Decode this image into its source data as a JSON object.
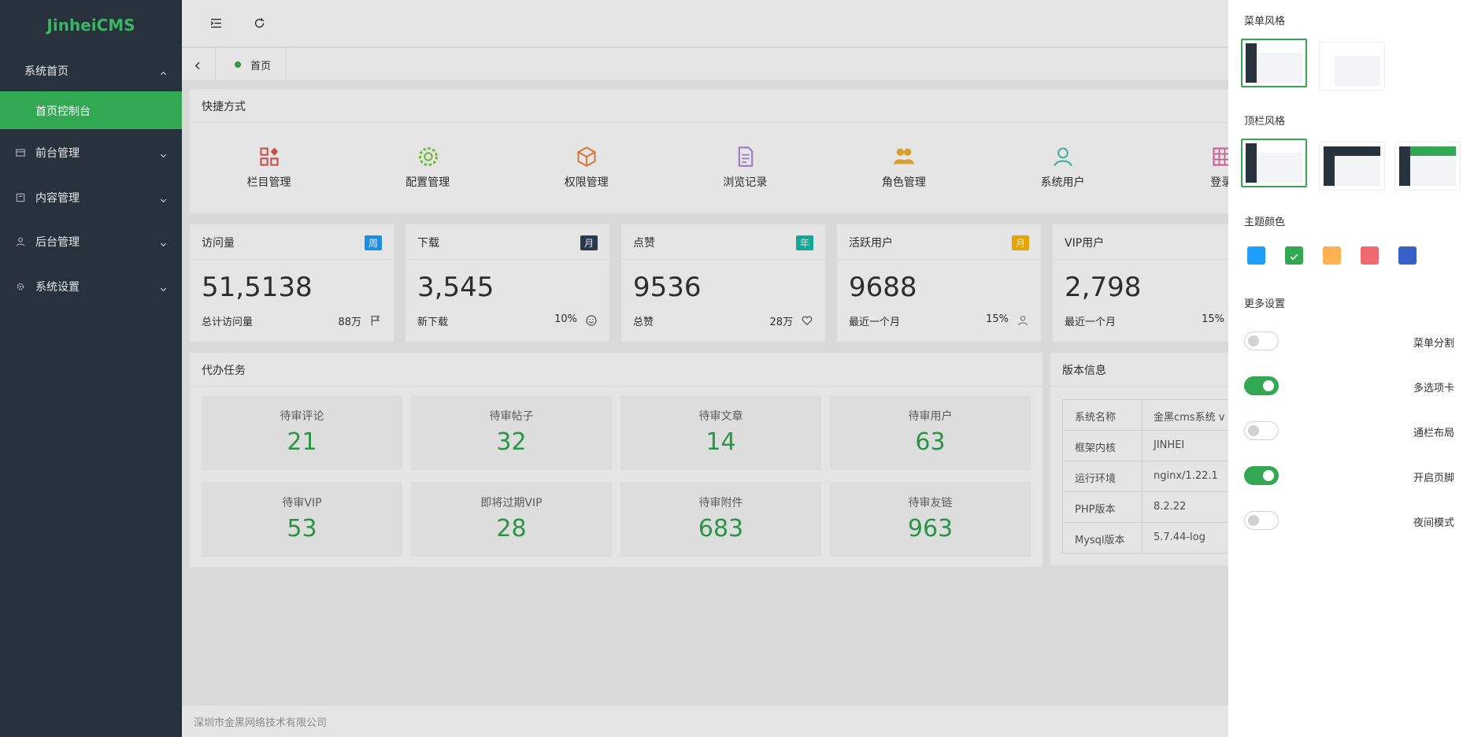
{
  "brand": "JinheiCMS",
  "menu": [
    {
      "label": "系统首页",
      "open": true,
      "children": [
        {
          "label": "首页控制台",
          "active": true
        }
      ]
    },
    {
      "label": "前台管理"
    },
    {
      "label": "内容管理"
    },
    {
      "label": "后台管理"
    },
    {
      "label": "系统设置"
    }
  ],
  "tabs": [
    {
      "label": "首页"
    }
  ],
  "shortcuts": {
    "title": "快捷方式",
    "items": [
      {
        "label": "栏目管理",
        "color": "#e05858"
      },
      {
        "label": "配置管理",
        "color": "#7ccd3f"
      },
      {
        "label": "权限管理",
        "color": "#f0884a"
      },
      {
        "label": "浏览记录",
        "color": "#a98bd6"
      },
      {
        "label": "角色管理",
        "color": "#f0b232"
      },
      {
        "label": "系统用户",
        "color": "#4fc0b0"
      },
      {
        "label": "登录",
        "color": "#e06aa0"
      }
    ]
  },
  "stats": [
    {
      "title": "访问量",
      "badge": "周",
      "badge_color": "#1e9fff",
      "value": "51,5138",
      "note": "总计访问量",
      "extra": "88万"
    },
    {
      "title": "下载",
      "badge": "月",
      "badge_color": "#2f4056",
      "value": "3,545",
      "note": "新下载",
      "extra": "10%"
    },
    {
      "title": "点赞",
      "badge": "年",
      "badge_color": "#16baaa",
      "value": "9536",
      "note": "总赞",
      "extra": "28万"
    },
    {
      "title": "活跃用户",
      "badge": "月",
      "badge_color": "#ffb800",
      "value": "9688",
      "note": "最近一个月",
      "extra": "15%"
    },
    {
      "title": "VIP用户",
      "value": "2,798",
      "note": "最近一个月",
      "extra": "15%"
    }
  ],
  "tasks": {
    "title": "代办任务",
    "items": [
      {
        "label": "待审评论",
        "value": 21
      },
      {
        "label": "待审帖子",
        "value": 32
      },
      {
        "label": "待审文章",
        "value": 14
      },
      {
        "label": "待审用户",
        "value": 63
      },
      {
        "label": "待审VIP",
        "value": 53
      },
      {
        "label": "即将过期VIP",
        "value": 28
      },
      {
        "label": "待审附件",
        "value": 683
      },
      {
        "label": "待审友链",
        "value": 963
      }
    ]
  },
  "version": {
    "title": "版本信息",
    "rows": [
      [
        "系统名称",
        "金黑cms系统 v"
      ],
      [
        "框架内核",
        "JINHEI"
      ],
      [
        "运行环境",
        "nginx/1.22.1"
      ],
      [
        "PHP版本",
        "8.2.22"
      ],
      [
        "Mysql版本",
        "5.7.44-log"
      ]
    ]
  },
  "footer": "深圳市金黑网络技术有限公司",
  "settings": {
    "menu_style_title": "菜单风格",
    "topbar_style_title": "顶栏风格",
    "theme_title": "主题颜色",
    "theme_colors": [
      "#1e9fff",
      "#33a852",
      "#ffb050",
      "#f06870",
      "#3860c8"
    ],
    "theme_selected": 1,
    "more_title": "更多设置",
    "toggles": [
      {
        "label": "菜单分割",
        "on": false
      },
      {
        "label": "多选项卡",
        "on": true
      },
      {
        "label": "通栏布局",
        "on": false
      },
      {
        "label": "开启页脚",
        "on": true
      },
      {
        "label": "夜间模式",
        "on": false
      }
    ]
  }
}
